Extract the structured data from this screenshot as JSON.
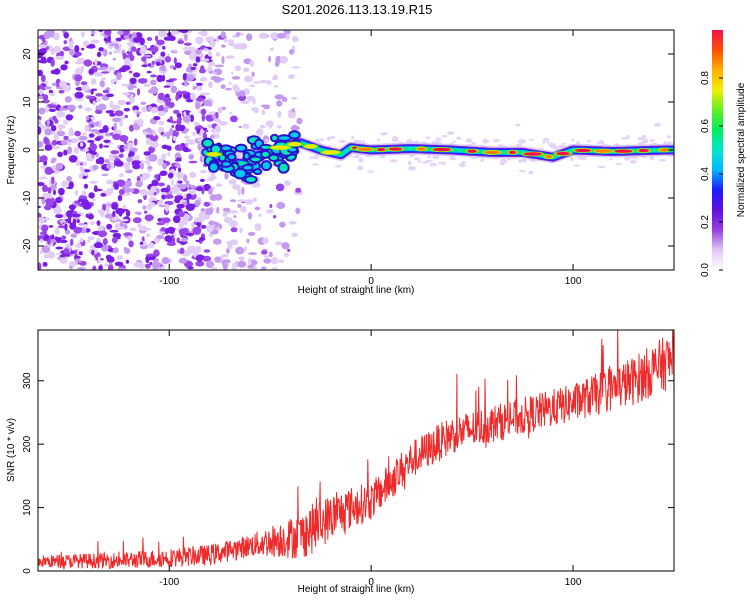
{
  "title": "S201.2026.113.13.19.R15",
  "colors": {
    "snr_line": "#ee2a2a",
    "axis": "#000000",
    "background": "#ffffff"
  },
  "chart_data": [
    {
      "type": "heatmap",
      "name": "spectrogram",
      "xlabel": "Height of straight line (km)",
      "ylabel": "Frequency (Hz)",
      "xlim": [
        -165,
        150
      ],
      "ylim": [
        -25,
        25
      ],
      "xticks": [
        -100,
        0,
        100
      ],
      "xtick_labels": [
        "-100",
        "0",
        "100"
      ],
      "yticks": [
        -20,
        -10,
        0,
        10,
        20
      ],
      "ytick_labels": [
        "-20",
        "-10",
        "0",
        "10",
        "20"
      ],
      "colorbar": {
        "label": "Normalized spectral amplitude",
        "range": [
          0,
          1
        ],
        "ticks": [
          0.0,
          0.2,
          0.4,
          0.6,
          0.8
        ],
        "tick_labels": [
          "0.0",
          "0.2",
          "0.4",
          "0.6",
          "0.8"
        ],
        "colormap": [
          "#ffffff",
          "#e0c8f5",
          "#9a3ee0",
          "#6010e0",
          "#1a1aff",
          "#00b8ff",
          "#00e8d0",
          "#00ee60",
          "#60f020",
          "#f0f000",
          "#ffb000",
          "#ff5000",
          "#f0104a"
        ]
      },
      "noise_region_x": [
        -165,
        -40
      ],
      "signal_track": [
        {
          "x": -80,
          "y": -0.5
        },
        {
          "x": -70,
          "y": -2.5
        },
        {
          "x": -60,
          "y": -3
        },
        {
          "x": -55,
          "y": -1
        },
        {
          "x": -45,
          "y": 0.5
        },
        {
          "x": -35,
          "y": 1.5
        },
        {
          "x": -25,
          "y": 0
        },
        {
          "x": -15,
          "y": -1
        },
        {
          "x": -10,
          "y": 0.5
        },
        {
          "x": 0,
          "y": 0
        },
        {
          "x": 20,
          "y": 0.3
        },
        {
          "x": 40,
          "y": 0
        },
        {
          "x": 60,
          "y": -0.5
        },
        {
          "x": 75,
          "y": -0.5
        },
        {
          "x": 90,
          "y": -1.5
        },
        {
          "x": 100,
          "y": 0
        },
        {
          "x": 120,
          "y": -0.3
        },
        {
          "x": 145,
          "y": 0
        }
      ]
    },
    {
      "type": "line",
      "name": "snr",
      "xlabel": "Height of straight line (km)",
      "ylabel": "SNR (10 * v/v)",
      "xlim": [
        -165,
        150
      ],
      "ylim": [
        0,
        380
      ],
      "xticks": [
        -100,
        0,
        100
      ],
      "xtick_labels": [
        "-100",
        "0",
        "100"
      ],
      "yticks": [
        0,
        100,
        200,
        300
      ],
      "ytick_labels": [
        "0",
        "100",
        "200",
        "300"
      ],
      "trend": [
        {
          "x": -165,
          "y": 15
        },
        {
          "x": -120,
          "y": 17
        },
        {
          "x": -80,
          "y": 25
        },
        {
          "x": -60,
          "y": 40
        },
        {
          "x": -45,
          "y": 50
        },
        {
          "x": -35,
          "y": 55
        },
        {
          "x": -20,
          "y": 85
        },
        {
          "x": -10,
          "y": 100
        },
        {
          "x": 0,
          "y": 110
        },
        {
          "x": 20,
          "y": 175
        },
        {
          "x": 40,
          "y": 215
        },
        {
          "x": 70,
          "y": 240
        },
        {
          "x": 100,
          "y": 265
        },
        {
          "x": 130,
          "y": 300
        },
        {
          "x": 150,
          "y": 335
        }
      ],
      "noise_amplitude": [
        {
          "x": -165,
          "y": 10
        },
        {
          "x": -60,
          "y": 18
        },
        {
          "x": -30,
          "y": 40
        },
        {
          "x": 0,
          "y": 30
        },
        {
          "x": 100,
          "y": 30
        },
        {
          "x": 150,
          "y": 45
        }
      ]
    }
  ]
}
